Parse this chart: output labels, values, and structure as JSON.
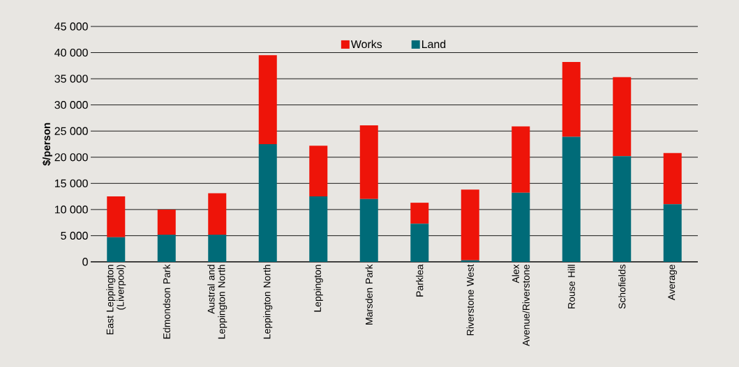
{
  "chart_data": {
    "type": "bar",
    "stacked": true,
    "ylabel": "$/person",
    "categories": [
      "East Leppington (Liverpool)",
      "Edmondson Park",
      "Austral and Leppington North",
      "Leppington North",
      "Leppington",
      "Marsden Park",
      "Parklea",
      "Riverstone West",
      "Alex Avenue/Riverstone",
      "Rouse Hill",
      "Schofields",
      "Average"
    ],
    "series": [
      {
        "name": "Land",
        "color": "#006b78",
        "values": [
          4700,
          5200,
          5200,
          22500,
          12500,
          12000,
          7300,
          300,
          13200,
          23900,
          20200,
          11000
        ]
      },
      {
        "name": "Works",
        "color": "#ee1409",
        "values": [
          7800,
          4800,
          7900,
          17000,
          9700,
          14100,
          4000,
          13500,
          12700,
          14300,
          15100,
          9800
        ]
      }
    ],
    "ylim": [
      0,
      45000
    ],
    "yticks": [
      {
        "value": 0,
        "label": "0"
      },
      {
        "value": 5000,
        "label": "5 000"
      },
      {
        "value": 10000,
        "label": "10 000"
      },
      {
        "value": 15000,
        "label": "15 000"
      },
      {
        "value": 20000,
        "label": "20 000"
      },
      {
        "value": 25000,
        "label": "25 000"
      },
      {
        "value": 30000,
        "label": "30 000"
      },
      {
        "value": 35000,
        "label": "35 000"
      },
      {
        "value": 40000,
        "label": "40 000"
      },
      {
        "value": 45000,
        "label": "45 000"
      }
    ],
    "grid": "y",
    "legend": "top"
  }
}
